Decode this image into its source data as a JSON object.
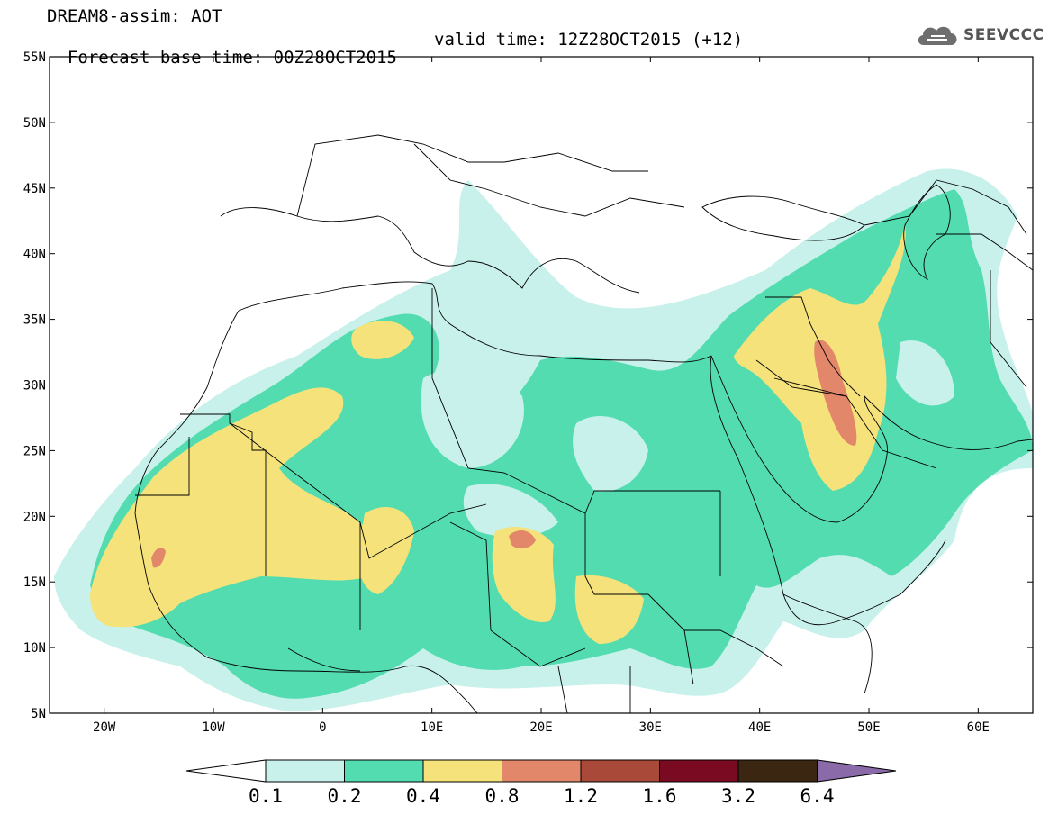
{
  "header": {
    "title_line1": "DREAM8-assim: AOT",
    "forecast_base": "Forecast base time: 00Z28OCT2015",
    "valid_time": "valid time: 12Z28OCT2015 (+12)"
  },
  "logo": {
    "text": "SEEVCCC",
    "icon": "cloud-icon"
  },
  "map": {
    "lon_range": [
      -25,
      65
    ],
    "lat_range": [
      5,
      55
    ],
    "lat_labels": [
      "55N",
      "50N",
      "45N",
      "40N",
      "35N",
      "30N",
      "25N",
      "20N",
      "15N",
      "10N",
      "5N"
    ],
    "lon_labels": [
      "20W",
      "10W",
      "0",
      "10E",
      "20E",
      "30E",
      "40E",
      "50E",
      "60E"
    ],
    "field": "AOT",
    "colors": {
      "band_0.1": "#c8f1eb",
      "band_0.2": "#52dcaf",
      "band_0.4": "#f5e27a",
      "band_0.8": "#e3876a",
      "band_1.2": "#a8493a",
      "band_1.6": "#7a0a22",
      "band_3.2": "#3b2612",
      "band_6.4": "#8a6aa9"
    }
  },
  "colorbar": {
    "labels": [
      "0.1",
      "0.2",
      "0.4",
      "0.8",
      "1.2",
      "1.6",
      "3.2",
      "6.4"
    ],
    "colors": [
      "#c8f1eb",
      "#52dcaf",
      "#f5e27a",
      "#e3876a",
      "#a8493a",
      "#7a0a22",
      "#3b2612",
      "#8a6aa9"
    ]
  }
}
